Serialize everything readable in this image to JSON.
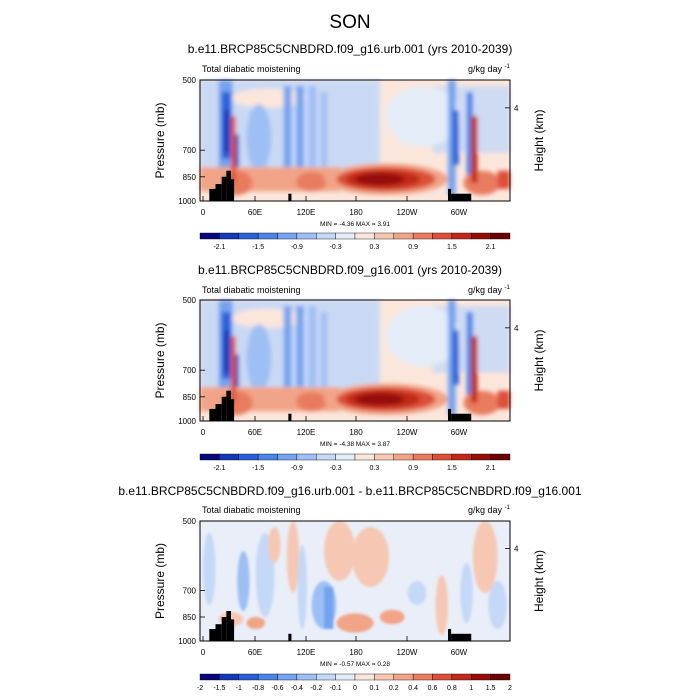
{
  "title": "SON",
  "panels": [
    {
      "title": "b.e11.BRCP85C5CNBDRD.f09_g16.urb.001 (yrs 2010-2039)",
      "left_label": "Total diabatic moistening",
      "right_label": "g/kg day",
      "right_label_exp": "-1",
      "minmax": "MIN =  -4.36  MAX =   3.91"
    },
    {
      "title": "b.e11.BRCP85C5CNBDRD.f09_g16.001 (yrs 2010-2039)",
      "left_label": "Total diabatic moistening",
      "right_label": "g/kg day",
      "right_label_exp": "-1",
      "minmax": "MIN =  -4.38  MAX =   3.87"
    },
    {
      "title": "b.e11.BRCP85C5CNBDRD.f09_g16.urb.001 - b.e11.BRCP85C5CNBDRD.f09_g16.001",
      "left_label": "Total diabatic moistening",
      "right_label": "g/kg day",
      "right_label_exp": "-1",
      "minmax": "MIN =  -0.57  MAX =   0.28"
    }
  ],
  "chart_data": [
    {
      "type": "heatmap",
      "ylabel": "Pressure (mb)",
      "y2label": "Height (km)",
      "yticks": [
        "500",
        "700",
        "850",
        "1000"
      ],
      "y2ticks": [
        "4"
      ],
      "xticks": [
        "0",
        "60E",
        "120E",
        "180",
        "120W",
        "60W"
      ],
      "colorbar_labels": [
        "-2.1",
        "-1.5",
        "-0.9",
        "-0.3",
        "0.3",
        "0.9",
        "1.5",
        "2.1"
      ],
      "colorbar_colors": [
        "#08087a",
        "#1537b8",
        "#2a60d8",
        "#4a84e6",
        "#74a3ef",
        "#9ebff4",
        "#c4d8f7",
        "#e3ecf7",
        "#fbe6dc",
        "#f6c8b3",
        "#f1a487",
        "#e97b5e",
        "#dc4f38",
        "#c12918",
        "#950d08",
        "#6b0000"
      ],
      "min": -4.36,
      "max": 3.91
    },
    {
      "type": "heatmap",
      "ylabel": "Pressure (mb)",
      "y2label": "Height (km)",
      "yticks": [
        "500",
        "700",
        "850",
        "1000"
      ],
      "y2ticks": [
        "4"
      ],
      "xticks": [
        "0",
        "60E",
        "120E",
        "180",
        "120W",
        "60W"
      ],
      "colorbar_labels": [
        "-2.1",
        "-1.5",
        "-0.9",
        "-0.3",
        "0.3",
        "0.9",
        "1.5",
        "2.1"
      ],
      "colorbar_colors": [
        "#08087a",
        "#1537b8",
        "#2a60d8",
        "#4a84e6",
        "#74a3ef",
        "#9ebff4",
        "#c4d8f7",
        "#e3ecf7",
        "#fbe6dc",
        "#f6c8b3",
        "#f1a487",
        "#e97b5e",
        "#dc4f38",
        "#c12918",
        "#950d08",
        "#6b0000"
      ],
      "min": -4.38,
      "max": 3.87
    },
    {
      "type": "heatmap",
      "ylabel": "Pressure (mb)",
      "y2label": "Height (km)",
      "yticks": [
        "500",
        "700",
        "850",
        "1000"
      ],
      "y2ticks": [
        "4"
      ],
      "xticks": [
        "0",
        "60E",
        "120E",
        "180",
        "120W",
        "60W"
      ],
      "colorbar_labels": [
        "-2",
        "-1.5",
        "-1",
        "-0.8",
        "-0.6",
        "-0.4",
        "-0.2",
        "-0.1",
        "0",
        "0.1",
        "0.2",
        "0.4",
        "0.6",
        "0.8",
        "1",
        "1.5",
        "2"
      ],
      "colorbar_colors": [
        "#08087a",
        "#1537b8",
        "#2a60d8",
        "#4a84e6",
        "#74a3ef",
        "#9ebff4",
        "#c4d8f7",
        "#e3ecf7",
        "#fbe6dc",
        "#f6c8b3",
        "#f1a487",
        "#e97b5e",
        "#dc4f38",
        "#c12918",
        "#950d08",
        "#6b0000"
      ],
      "min": -0.57,
      "max": 0.28
    }
  ]
}
